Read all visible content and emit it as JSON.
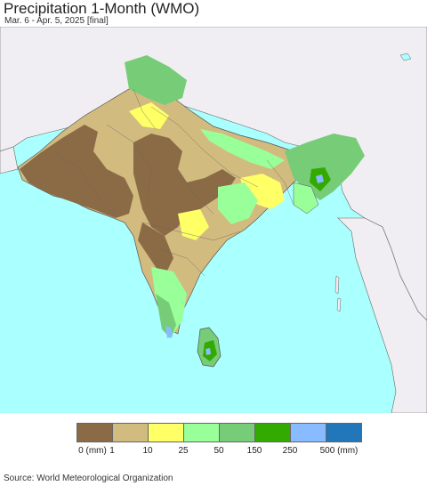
{
  "title": "Precipitation 1-Month (WMO)",
  "subtitle": "Mar. 6 - Apr. 5, 2025 [final]",
  "source": "Source: World Meteorological Organization",
  "colors": {
    "ocean": "#aaffff",
    "land_outside": "#f0eef2",
    "border": "#555555"
  },
  "legend": {
    "unit_label": "0 (mm)",
    "tick_labels": [
      "1",
      "10",
      "25",
      "50",
      "150",
      "250",
      "500 (mm)"
    ],
    "bins": [
      {
        "color": "#8a6b45"
      },
      {
        "color": "#d2bb7f"
      },
      {
        "color": "#ffff66"
      },
      {
        "color": "#99ff99"
      },
      {
        "color": "#77cc77"
      },
      {
        "color": "#33aa00"
      },
      {
        "color": "#88bbff"
      },
      {
        "color": "#2277bb"
      }
    ]
  }
}
